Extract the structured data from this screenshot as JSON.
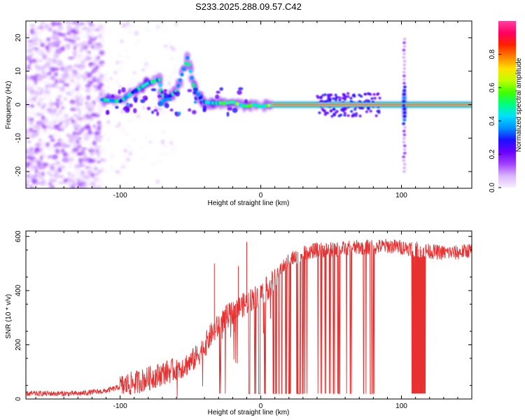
{
  "title": "S233.2025.288.09.57.C42",
  "chart_data": [
    {
      "type": "heatmap",
      "xlabel": "Height of straight line (km)",
      "ylabel": "Frequency (Hz)",
      "xlim": [
        -167,
        150
      ],
      "ylim": [
        -25,
        25
      ],
      "xticks": [
        -100,
        0,
        100
      ],
      "yticks": [
        -20,
        -10,
        0,
        10,
        20
      ],
      "colorbar": {
        "label": "Normalized spectral amplitude",
        "range": [
          0,
          1
        ],
        "ticks": [
          0.0,
          0.2,
          0.4,
          0.6,
          0.8
        ],
        "colors": [
          "#f8f0ff",
          "#d9b3ff",
          "#a040ff",
          "#6a00ff",
          "#1a10ff",
          "#0090ff",
          "#00e0ff",
          "#00ff80",
          "#40ff00",
          "#c0ff00",
          "#ffe000",
          "#ff8000",
          "#ff2000",
          "#ff0060",
          "#ff40a0"
        ]
      },
      "features": [
        {
          "name": "diffuse-noise",
          "x_range": [
            -167,
            -112
          ],
          "y_range": [
            -25,
            25
          ],
          "amplitude": 0.12
        },
        {
          "name": "sparse-noise",
          "x_range": [
            -112,
            -60
          ],
          "y_range": [
            -25,
            25
          ],
          "amplitude": 0.06
        },
        {
          "name": "tonal-track-rising",
          "points": [
            [
              -113,
              1.5
            ],
            [
              -100,
              1
            ],
            [
              -90,
              4
            ],
            [
              -80,
              6.5
            ],
            [
              -72,
              7.5
            ],
            [
              -70,
              1
            ],
            [
              -60,
              4
            ],
            [
              -52,
              14
            ],
            [
              -48,
              6
            ],
            [
              -42,
              1
            ],
            [
              -35,
              0.5
            ],
            [
              -25,
              0.5
            ],
            [
              -20,
              0.8
            ],
            [
              -15,
              0
            ],
            [
              -10,
              -0.5
            ],
            [
              -5,
              0
            ],
            [
              0,
              -0.5
            ],
            [
              10,
              0
            ]
          ],
          "amplitude": 0.3
        },
        {
          "name": "steady-tone",
          "x_range": [
            8,
            150
          ],
          "frequency": 0,
          "amplitude": 0.95
        },
        {
          "name": "vertical-stripe",
          "x": 102,
          "y_range": [
            -20,
            20
          ],
          "amplitude": 0.3
        }
      ]
    },
    {
      "type": "line",
      "xlabel": "Height of straight line (km)",
      "ylabel": "SNR (10 * v/v)",
      "xlim": [
        -167,
        150
      ],
      "ylim": [
        0,
        620
      ],
      "xticks": [
        -100,
        0,
        100
      ],
      "yticks": [
        0,
        200,
        400,
        600
      ],
      "color": "#e83030",
      "series": [
        {
          "name": "SNR envelope",
          "x": [
            -167,
            -130,
            -110,
            -100,
            -90,
            -80,
            -70,
            -60,
            -50,
            -45,
            -40,
            -35,
            -30,
            -25,
            -20,
            -15,
            -10,
            -5,
            0,
            5,
            10,
            15,
            20,
            30,
            40,
            50,
            60,
            70,
            80,
            90,
            100,
            110,
            120,
            130,
            140,
            150
          ],
          "y": [
            20,
            20,
            30,
            45,
            60,
            75,
            95,
            110,
            135,
            160,
            195,
            240,
            270,
            300,
            320,
            340,
            355,
            375,
            390,
            410,
            440,
            480,
            510,
            540,
            550,
            550,
            555,
            560,
            560,
            565,
            560,
            555,
            545,
            540,
            540,
            550
          ]
        }
      ],
      "spikes_up": [
        [
          -33,
          500
        ],
        [
          -16,
          490
        ],
        [
          -10,
          580
        ]
      ],
      "dropouts_x_range": [
        -30,
        80
      ],
      "dropout_floor": 20,
      "dropout_band_x_range": [
        107,
        117
      ]
    }
  ]
}
